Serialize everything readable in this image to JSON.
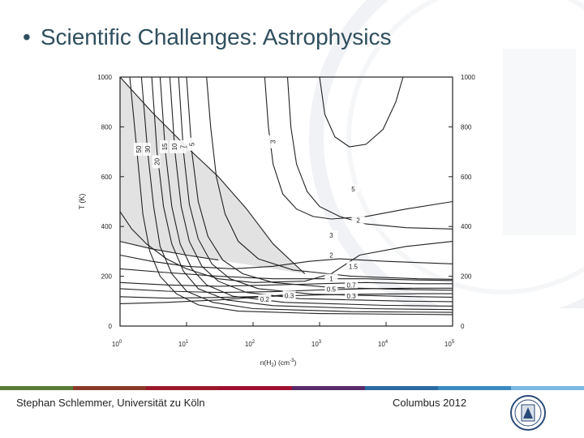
{
  "slide": {
    "title": "Scientific Challenges: Astrophysics",
    "bullet": "•",
    "footer_left": "Stephan Schlemmer, Universität zu Köln",
    "footer_right": "Columbus 2012",
    "footer_colors": [
      "#5a7a36",
      "#8a3a2a",
      "#9a1a28",
      "#a01030",
      "#5a2a6a",
      "#2a6aa0",
      "#3a8ac0",
      "#7ab8e0"
    ],
    "logo": "university-seal-icon"
  },
  "chart_data": {
    "type": "line",
    "title": "",
    "xlabel": "n(H2) (cm^-3)",
    "xlabel_parts": {
      "main": "n(H",
      "sub": "2",
      "mid": ") (cm",
      "sup": "-3",
      "end": ")"
    },
    "ylabel": "T (K)",
    "x_scale": "log",
    "xlim": [
      1,
      100000
    ],
    "ylim": [
      0,
      1000
    ],
    "x_ticks": [
      {
        "base": "10",
        "exp": "0"
      },
      {
        "base": "10",
        "exp": "1"
      },
      {
        "base": "10",
        "exp": "2"
      },
      {
        "base": "10",
        "exp": "3"
      },
      {
        "base": "10",
        "exp": "4"
      },
      {
        "base": "10",
        "exp": "5"
      }
    ],
    "y_ticks": [
      "0",
      "200",
      "400",
      "600",
      "800",
      "1000"
    ],
    "y_ticks_right": [
      "0",
      "200",
      "400",
      "600",
      "800",
      "1000"
    ],
    "shaded_region_color": "#e2e2e2",
    "contours": [
      {
        "label": "50",
        "points": [
          [
            1.4,
            1000
          ],
          [
            1.8,
            700
          ],
          [
            2.2,
            450
          ],
          [
            2.8,
            300
          ],
          [
            4,
            200
          ],
          [
            7,
            130
          ],
          [
            15,
            85
          ],
          [
            60,
            60
          ],
          [
            1000,
            50
          ],
          [
            100000,
            46
          ]
        ]
      },
      {
        "label": "30",
        "points": [
          [
            2.1,
            1000
          ],
          [
            2.6,
            700
          ],
          [
            3.2,
            480
          ],
          [
            4,
            320
          ],
          [
            6,
            210
          ],
          [
            10,
            140
          ],
          [
            25,
            95
          ],
          [
            100,
            70
          ],
          [
            3000,
            58
          ],
          [
            100000,
            55
          ]
        ]
      },
      {
        "label": "20",
        "points": [
          [
            3.0,
            1000
          ],
          [
            3.6,
            700
          ],
          [
            4.5,
            480
          ],
          [
            6,
            330
          ],
          [
            9,
            220
          ],
          [
            15,
            150
          ],
          [
            40,
            105
          ],
          [
            200,
            82
          ],
          [
            5000,
            70
          ],
          [
            100000,
            66
          ]
        ]
      },
      {
        "label": "15",
        "points": [
          [
            4.0,
            1000
          ],
          [
            4.8,
            700
          ],
          [
            6,
            480
          ],
          [
            8,
            330
          ],
          [
            12,
            230
          ],
          [
            20,
            165
          ],
          [
            50,
            120
          ],
          [
            300,
            95
          ],
          [
            10000,
            83
          ],
          [
            100000,
            80
          ]
        ]
      },
      {
        "label": "10",
        "points": [
          [
            5.6,
            1000
          ],
          [
            6.7,
            700
          ],
          [
            8.3,
            480
          ],
          [
            11,
            340
          ],
          [
            17,
            240
          ],
          [
            30,
            180
          ],
          [
            80,
            135
          ],
          [
            500,
            110
          ],
          [
            20000,
            100
          ],
          [
            100000,
            98
          ]
        ]
      },
      {
        "label": "7",
        "points": [
          [
            7.6,
            1000
          ],
          [
            9,
            700
          ],
          [
            11,
            490
          ],
          [
            15,
            350
          ],
          [
            24,
            250
          ],
          [
            45,
            190
          ],
          [
            120,
            150
          ],
          [
            800,
            128
          ],
          [
            30000,
            118
          ],
          [
            100000,
            116
          ]
        ]
      },
      {
        "label": "5",
        "points": [
          [
            10,
            1000
          ],
          [
            12,
            700
          ],
          [
            15,
            500
          ],
          [
            21,
            360
          ],
          [
            35,
            265
          ],
          [
            70,
            210
          ],
          [
            200,
            175
          ],
          [
            1500,
            155
          ],
          [
            30000,
            146
          ],
          [
            100000,
            144
          ]
        ]
      },
      {
        "label": "3",
        "points": [
          [
            20,
            1000
          ],
          [
            23,
            800
          ],
          [
            28,
            600
          ],
          [
            38,
            450
          ],
          [
            60,
            340
          ],
          [
            120,
            270
          ],
          [
            400,
            225
          ],
          [
            3000,
            200
          ],
          [
            30000,
            190
          ],
          [
            100000,
            188
          ]
        ]
      },
      {
        "label": "2",
        "points": [
          [
            150,
            1000
          ],
          [
            170,
            800
          ],
          [
            200,
            650
          ],
          [
            280,
            530
          ],
          [
            450,
            470
          ],
          [
            800,
            440
          ],
          [
            1500,
            430
          ],
          [
            5000,
            440
          ],
          [
            20000,
            470
          ],
          [
            100000,
            500
          ]
        ]
      },
      {
        "label": "3",
        "points": [
          [
            330,
            1000
          ],
          [
            370,
            800
          ],
          [
            450,
            650
          ],
          [
            650,
            540
          ],
          [
            1000,
            480
          ],
          [
            2000,
            440
          ],
          [
            5000,
            410
          ],
          [
            20000,
            395
          ],
          [
            100000,
            390
          ]
        ]
      },
      {
        "label": "2",
        "points": [
          [
            1,
            460
          ],
          [
            1.5,
            390
          ],
          [
            2.5,
            330
          ],
          [
            5,
            270
          ],
          [
            10,
            230
          ],
          [
            30,
            190
          ],
          [
            100,
            175
          ],
          [
            600,
            180
          ],
          [
            1500,
            210
          ],
          [
            4000,
            285
          ],
          [
            20000,
            320
          ],
          [
            100000,
            340
          ]
        ]
      },
      {
        "label": "1.5",
        "points": [
          [
            1,
            285
          ],
          [
            3,
            260
          ],
          [
            10,
            240
          ],
          [
            50,
            230
          ],
          [
            200,
            240
          ],
          [
            700,
            260
          ],
          [
            2000,
            270
          ],
          [
            10000,
            260
          ],
          [
            100000,
            250
          ]
        ]
      },
      {
        "label": "1",
        "points": [
          [
            1,
            230
          ],
          [
            5,
            215
          ],
          [
            30,
            200
          ],
          [
            200,
            190
          ],
          [
            1000,
            190
          ],
          [
            5000,
            190
          ],
          [
            30000,
            185
          ],
          [
            100000,
            183
          ]
        ]
      },
      {
        "label": "0.7",
        "points": [
          [
            1,
            175
          ],
          [
            5,
            165
          ],
          [
            30,
            160
          ],
          [
            200,
            165
          ],
          [
            1000,
            170
          ],
          [
            5000,
            175
          ],
          [
            30000,
            170
          ],
          [
            100000,
            170
          ]
        ]
      },
      {
        "label": "0.5",
        "points": [
          [
            1,
            150
          ],
          [
            5,
            140
          ],
          [
            30,
            135
          ],
          [
            200,
            138
          ],
          [
            1000,
            145
          ],
          [
            5000,
            150
          ],
          [
            30000,
            152
          ],
          [
            100000,
            152
          ]
        ]
      },
      {
        "label": "0.3",
        "points": [
          [
            1,
            118
          ],
          [
            5,
            112
          ],
          [
            30,
            115
          ],
          [
            200,
            120
          ],
          [
            1000,
            125
          ],
          [
            5000,
            128
          ],
          [
            30000,
            130
          ],
          [
            100000,
            130
          ]
        ]
      },
      {
        "label": "0.2",
        "points": [
          [
            1,
            90
          ],
          [
            5,
            95
          ],
          [
            30,
            105
          ],
          [
            100,
            115
          ],
          [
            300,
            125
          ]
        ]
      },
      {
        "label": "5",
        "points": [
          [
            1000,
            1000
          ],
          [
            1200,
            850
          ],
          [
            1700,
            760
          ],
          [
            2800,
            720
          ],
          [
            5000,
            730
          ],
          [
            9000,
            790
          ],
          [
            14000,
            900
          ],
          [
            18000,
            1000
          ]
        ]
      },
      {
        "label": "",
        "points": [
          [
            1,
            340
          ],
          [
            3,
            310
          ],
          [
            10,
            285
          ],
          [
            30,
            265
          ]
        ]
      },
      {
        "label": "",
        "points": [
          [
            1,
            1000
          ],
          [
            3,
            860
          ],
          [
            10,
            720
          ],
          [
            30,
            600
          ],
          [
            80,
            470
          ],
          [
            200,
            330
          ],
          [
            600,
            210
          ]
        ]
      }
    ],
    "contour_labels": [
      {
        "text": "50",
        "x": 1.9,
        "y": 710,
        "rot": -90
      },
      {
        "text": "30",
        "x": 2.6,
        "y": 710,
        "rot": -90
      },
      {
        "text": "20",
        "x": 3.6,
        "y": 660,
        "rot": -90
      },
      {
        "text": "15",
        "x": 4.7,
        "y": 720,
        "rot": -90
      },
      {
        "text": "10",
        "x": 6.6,
        "y": 720,
        "rot": -90
      },
      {
        "text": "7",
        "x": 8.8,
        "y": 720,
        "rot": -90
      },
      {
        "text": "5",
        "x": 12,
        "y": 730,
        "rot": -90
      },
      {
        "text": "3",
        "x": 200,
        "y": 740,
        "rot": -90
      },
      {
        "text": "5",
        "x": 3200,
        "y": 550,
        "rot": 0
      },
      {
        "text": "2",
        "x": 3800,
        "y": 425,
        "rot": 0
      },
      {
        "text": "3",
        "x": 1500,
        "y": 365,
        "rot": 0
      },
      {
        "text": "2",
        "x": 1500,
        "y": 285,
        "rot": 0
      },
      {
        "text": "1.5",
        "x": 3200,
        "y": 240,
        "rot": 0
      },
      {
        "text": "1",
        "x": 1500,
        "y": 190,
        "rot": 0
      },
      {
        "text": "0.7",
        "x": 3000,
        "y": 165,
        "rot": 0
      },
      {
        "text": "0.5",
        "x": 1500,
        "y": 148,
        "rot": 0
      },
      {
        "text": "0.3",
        "x": 3000,
        "y": 120,
        "rot": 0
      },
      {
        "text": "0.3",
        "x": 350,
        "y": 122,
        "rot": 0
      },
      {
        "text": "0.2",
        "x": 150,
        "y": 108,
        "rot": 0
      }
    ]
  }
}
